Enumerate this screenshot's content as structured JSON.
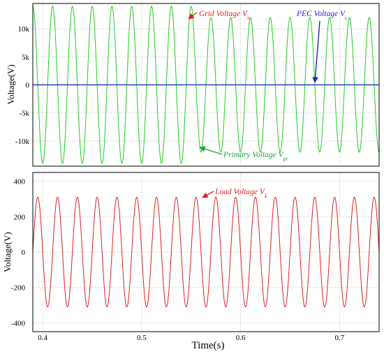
{
  "chart_data": [
    {
      "type": "line",
      "ylabel": "Voltage(V)",
      "xlabel": "",
      "xlim": [
        0.39,
        0.74
      ],
      "ylim": [
        -14500,
        14500
      ],
      "x_ticks": [
        0.4,
        0.5,
        0.6,
        0.7
      ],
      "y_ticks": [
        -10000,
        -5000,
        0,
        5000,
        10000
      ],
      "y_tick_labels": [
        "-10k",
        "-5k",
        "0",
        "5k",
        "10k"
      ],
      "grid": true,
      "frequency_hz": 50,
      "series": [
        {
          "name": "Primary Voltage Vpr",
          "label_main": "Primary Voltage V",
          "label_sub": "pr",
          "color": "#22cc22",
          "amplitude_start": 14000,
          "amplitude_end": 12000,
          "amplitude_change_time": 0.555
        },
        {
          "name": "PEC Voltage Vc",
          "label_main": "PEC Voltage V",
          "label_sub": "c",
          "color": "#1f3fbf",
          "value": 0
        }
      ],
      "annotations": [
        {
          "main": "Grid Voltage V",
          "sub": "s",
          "color": "#e02020"
        },
        {
          "main": "PEC Voltage V",
          "sub": "c",
          "color": "#1f1fcf"
        },
        {
          "main": "Primary Voltage V",
          "sub": "pr",
          "color": "#1aa33a"
        }
      ]
    },
    {
      "type": "line",
      "ylabel": "Voltage(V)",
      "xlabel": "Time(s)",
      "xlim": [
        0.39,
        0.74
      ],
      "ylim": [
        -450,
        450
      ],
      "x_ticks": [
        0.4,
        0.5,
        0.6,
        0.7
      ],
      "x_tick_labels": [
        "0.4",
        "0.5",
        "0.6",
        "0.7"
      ],
      "y_ticks": [
        -400,
        -200,
        0,
        200,
        400
      ],
      "y_tick_labels": [
        "-400",
        "-200",
        "0",
        "200",
        "400"
      ],
      "grid": true,
      "frequency_hz": 50,
      "series": [
        {
          "name": "Load Voltage VL",
          "label_main": "Load Voltage V",
          "label_sub": "L",
          "color": "#e02020",
          "amplitude": 310
        }
      ],
      "annotations": [
        {
          "main": "Load Voltage V",
          "sub": "L",
          "color": "#e02020"
        }
      ]
    }
  ]
}
